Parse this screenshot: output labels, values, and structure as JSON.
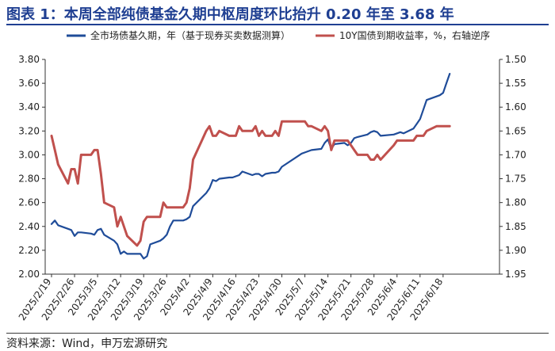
{
  "title": "图表 1：本周全部纯债基金久期中枢周度环比抬升 0.20 年至 3.68 年",
  "source": "资料来源：Wind，申万宏源研究",
  "colors": {
    "title": "#1f3f92",
    "series_left": "#1f4c99",
    "series_right": "#c0504d"
  },
  "chart_data": {
    "type": "line",
    "dual_axis": true,
    "right_axis_inverted": true,
    "legend_position": "top",
    "grid": false,
    "x_tick_labels": [
      "2025/2/19",
      "2025/2/26",
      "2025/3/5",
      "2025/3/12",
      "2025/3/19",
      "2025/3/26",
      "2025/4/2",
      "2025/4/9",
      "2025/4/16",
      "2025/4/23",
      "2025/4/30",
      "2025/5/7",
      "2025/5/14",
      "2025/5/21",
      "2025/5/28",
      "2025/6/4",
      "2025/6/11",
      "2025/6/18"
    ],
    "y_left": {
      "ylim": [
        2.0,
        3.8
      ],
      "ticks": [
        "2.00",
        "2.20",
        "2.40",
        "2.60",
        "2.80",
        "3.00",
        "3.20",
        "3.40",
        "3.60",
        "3.80"
      ]
    },
    "y_right": {
      "ylim": [
        1.95,
        1.5
      ],
      "ticks": [
        "1.50",
        "1.55",
        "1.60",
        "1.65",
        "1.70",
        "1.75",
        "1.80",
        "1.85",
        "1.90",
        "1.95"
      ]
    },
    "series": [
      {
        "name": "全市场债基久期，年（基于现券买卖数据测算）",
        "axis": "left",
        "x": [
          "2025/2/19",
          "2025/2/20",
          "2025/2/21",
          "2025/2/24",
          "2025/2/25",
          "2025/2/26",
          "2025/2/27",
          "2025/2/28",
          "2025/3/3",
          "2025/3/4",
          "2025/3/5",
          "2025/3/6",
          "2025/3/7",
          "2025/3/10",
          "2025/3/11",
          "2025/3/12",
          "2025/3/13",
          "2025/3/14",
          "2025/3/17",
          "2025/3/18",
          "2025/3/19",
          "2025/3/20",
          "2025/3/21",
          "2025/3/24",
          "2025/3/25",
          "2025/3/26",
          "2025/3/27",
          "2025/3/28",
          "2025/3/31",
          "2025/4/1",
          "2025/4/2",
          "2025/4/3",
          "2025/4/7",
          "2025/4/8",
          "2025/4/9",
          "2025/4/10",
          "2025/4/11",
          "2025/4/14",
          "2025/4/15",
          "2025/4/16",
          "2025/4/17",
          "2025/4/18",
          "2025/4/21",
          "2025/4/22",
          "2025/4/23",
          "2025/4/24",
          "2025/4/25",
          "2025/4/27",
          "2025/4/28",
          "2025/4/29",
          "2025/4/30",
          "2025/5/6",
          "2025/5/7",
          "2025/5/8",
          "2025/5/9",
          "2025/5/12",
          "2025/5/13",
          "2025/5/14",
          "2025/5/15",
          "2025/5/16",
          "2025/5/19",
          "2025/5/20",
          "2025/5/21",
          "2025/5/22",
          "2025/5/23",
          "2025/5/26",
          "2025/5/27",
          "2025/5/28",
          "2025/5/29",
          "2025/5/30",
          "2025/6/3",
          "2025/6/4",
          "2025/6/5",
          "2025/6/6",
          "2025/6/9",
          "2025/6/10",
          "2025/6/11",
          "2025/6/12",
          "2025/6/13",
          "2025/6/16",
          "2025/6/17",
          "2025/6/18",
          "2025/6/19",
          "2025/6/20"
        ],
        "values": [
          2.42,
          2.45,
          2.41,
          2.38,
          2.37,
          2.32,
          2.35,
          2.35,
          2.34,
          2.33,
          2.37,
          2.38,
          2.33,
          2.28,
          2.25,
          2.17,
          2.19,
          2.17,
          2.17,
          2.17,
          2.13,
          2.15,
          2.25,
          2.28,
          2.3,
          2.33,
          2.4,
          2.45,
          2.45,
          2.46,
          2.48,
          2.57,
          2.68,
          2.72,
          2.79,
          2.78,
          2.8,
          2.81,
          2.81,
          2.82,
          2.83,
          2.86,
          2.83,
          2.84,
          2.84,
          2.82,
          2.84,
          2.85,
          2.85,
          2.86,
          2.9,
          3.01,
          3.02,
          3.03,
          3.04,
          3.05,
          3.1,
          3.13,
          3.05,
          3.09,
          3.1,
          3.08,
          3.1,
          3.14,
          3.15,
          3.17,
          3.19,
          3.2,
          3.19,
          3.16,
          3.17,
          3.18,
          3.19,
          3.18,
          3.22,
          3.26,
          3.3,
          3.38,
          3.46,
          3.49,
          3.5,
          3.52,
          3.6,
          3.68
        ]
      },
      {
        "name": "10Y国债到期收益率，%，右轴逆序",
        "axis": "right",
        "x": [
          "2025/2/19",
          "2025/2/20",
          "2025/2/21",
          "2025/2/24",
          "2025/2/25",
          "2025/2/26",
          "2025/2/27",
          "2025/2/28",
          "2025/3/3",
          "2025/3/4",
          "2025/3/5",
          "2025/3/6",
          "2025/3/7",
          "2025/3/10",
          "2025/3/11",
          "2025/3/12",
          "2025/3/13",
          "2025/3/14",
          "2025/3/17",
          "2025/3/18",
          "2025/3/19",
          "2025/3/20",
          "2025/3/21",
          "2025/3/24",
          "2025/3/25",
          "2025/3/26",
          "2025/3/27",
          "2025/3/28",
          "2025/3/31",
          "2025/4/1",
          "2025/4/2",
          "2025/4/3",
          "2025/4/7",
          "2025/4/8",
          "2025/4/9",
          "2025/4/10",
          "2025/4/11",
          "2025/4/14",
          "2025/4/15",
          "2025/4/16",
          "2025/4/17",
          "2025/4/18",
          "2025/4/21",
          "2025/4/22",
          "2025/4/23",
          "2025/4/24",
          "2025/4/25",
          "2025/4/27",
          "2025/4/28",
          "2025/4/29",
          "2025/4/30",
          "2025/5/6",
          "2025/5/7",
          "2025/5/8",
          "2025/5/9",
          "2025/5/12",
          "2025/5/13",
          "2025/5/14",
          "2025/5/15",
          "2025/5/16",
          "2025/5/19",
          "2025/5/20",
          "2025/5/21",
          "2025/5/22",
          "2025/5/23",
          "2025/5/26",
          "2025/5/27",
          "2025/5/28",
          "2025/5/29",
          "2025/5/30",
          "2025/6/3",
          "2025/6/4",
          "2025/6/5",
          "2025/6/6",
          "2025/6/9",
          "2025/6/10",
          "2025/6/11",
          "2025/6/12",
          "2025/6/13",
          "2025/6/16",
          "2025/6/17",
          "2025/6/18",
          "2025/6/19",
          "2025/6/20"
        ],
        "values": [
          1.66,
          1.69,
          1.72,
          1.76,
          1.73,
          1.73,
          1.76,
          1.7,
          1.7,
          1.69,
          1.69,
          1.74,
          1.8,
          1.81,
          1.85,
          1.83,
          1.85,
          1.87,
          1.89,
          1.88,
          1.84,
          1.83,
          1.83,
          1.83,
          1.8,
          1.81,
          1.81,
          1.81,
          1.81,
          1.8,
          1.77,
          1.71,
          1.65,
          1.64,
          1.66,
          1.66,
          1.65,
          1.66,
          1.66,
          1.66,
          1.64,
          1.65,
          1.65,
          1.64,
          1.66,
          1.65,
          1.66,
          1.66,
          1.65,
          1.66,
          1.63,
          1.63,
          1.63,
          1.64,
          1.64,
          1.65,
          1.64,
          1.65,
          1.69,
          1.67,
          1.67,
          1.67,
          1.68,
          1.69,
          1.7,
          1.7,
          1.71,
          1.71,
          1.7,
          1.71,
          1.68,
          1.67,
          1.67,
          1.67,
          1.67,
          1.66,
          1.66,
          1.66,
          1.65,
          1.64,
          1.64,
          1.64,
          1.64,
          1.64
        ]
      }
    ]
  }
}
